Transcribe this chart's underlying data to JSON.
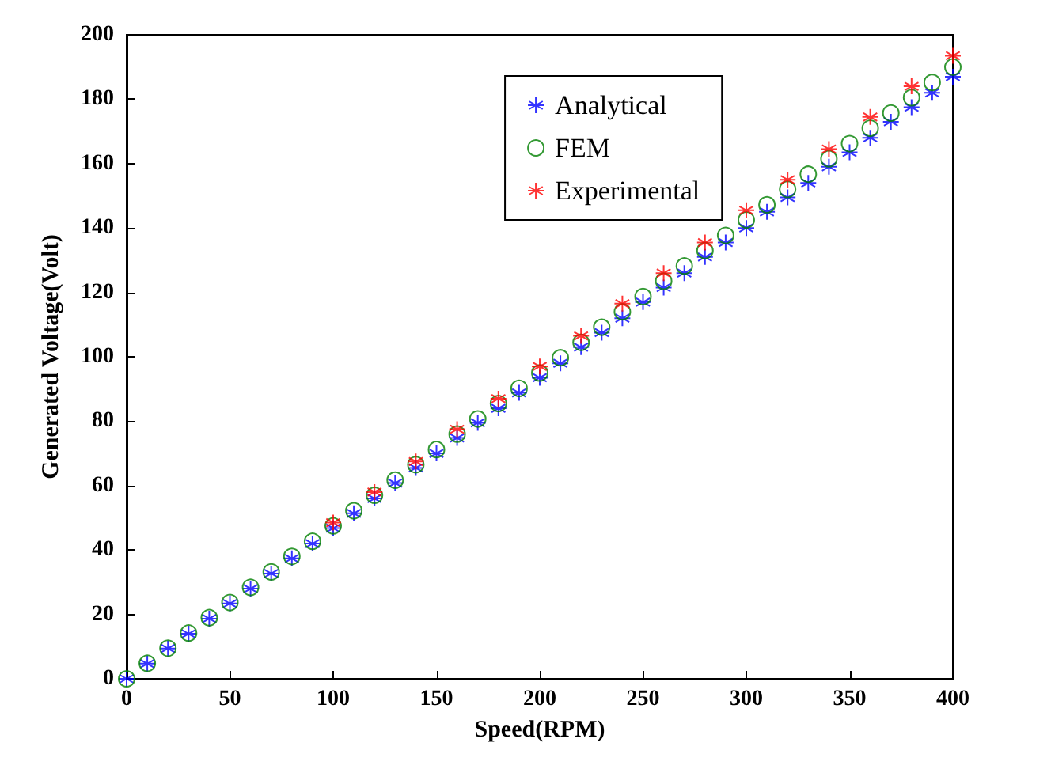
{
  "chart_data": {
    "type": "scatter",
    "xlabel": "Speed(RPM)",
    "ylabel": "Generated Voltage(Volt)",
    "xlim": [
      0,
      400
    ],
    "xticks": [
      0,
      50,
      100,
      150,
      200,
      250,
      300,
      350,
      400
    ],
    "ylim": [
      0,
      200
    ],
    "yticks": [
      0,
      20,
      40,
      60,
      80,
      100,
      120,
      140,
      160,
      180,
      200
    ],
    "grid": false,
    "legend": "top",
    "x": [
      0,
      10,
      20,
      30,
      40,
      50,
      60,
      70,
      80,
      90,
      100,
      110,
      120,
      130,
      140,
      150,
      160,
      170,
      180,
      190,
      200,
      210,
      220,
      230,
      240,
      250,
      260,
      270,
      280,
      290,
      300,
      310,
      320,
      330,
      340,
      350,
      360,
      370,
      380,
      390,
      400
    ],
    "series": [
      {
        "name": "Analytical",
        "color": "#0000ff",
        "marker": "cross",
        "values": [
          0,
          4.7,
          9.4,
          14,
          18.7,
          23.4,
          28,
          32.7,
          37.4,
          42,
          46.8,
          51.4,
          56,
          60.8,
          65.5,
          70,
          74.8,
          79.5,
          84,
          88.8,
          93.5,
          98,
          103,
          107.5,
          112,
          117,
          121.5,
          126,
          131,
          135.5,
          140,
          145,
          149.5,
          154,
          159,
          163.5,
          168,
          173,
          177.5,
          182,
          187
        ]
      },
      {
        "name": "FEM",
        "color": "#008000",
        "marker": "circle",
        "values": [
          0,
          4.8,
          9.5,
          14.2,
          19,
          23.7,
          28.4,
          33.2,
          38,
          42.7,
          47.5,
          52.2,
          57,
          61.7,
          66.5,
          71.2,
          76,
          80.7,
          85.5,
          90.2,
          95,
          99.7,
          104.5,
          109.2,
          114,
          118.7,
          123.5,
          128.2,
          133,
          137.7,
          142.5,
          147.2,
          152,
          156.7,
          161.5,
          166.2,
          171,
          175.7,
          180.5,
          185.2,
          190
        ]
      },
      {
        "name": "Experimental",
        "color": "#ff0000",
        "marker": "cross",
        "x": [
          100,
          120,
          140,
          160,
          180,
          200,
          220,
          240,
          260,
          280,
          300,
          320,
          340,
          360,
          380,
          400
        ],
        "values": [
          48.5,
          58,
          67.5,
          77.5,
          87,
          97,
          106.5,
          116.5,
          126,
          135.5,
          145.5,
          155,
          164.5,
          174.5,
          184,
          193.5
        ]
      }
    ]
  }
}
